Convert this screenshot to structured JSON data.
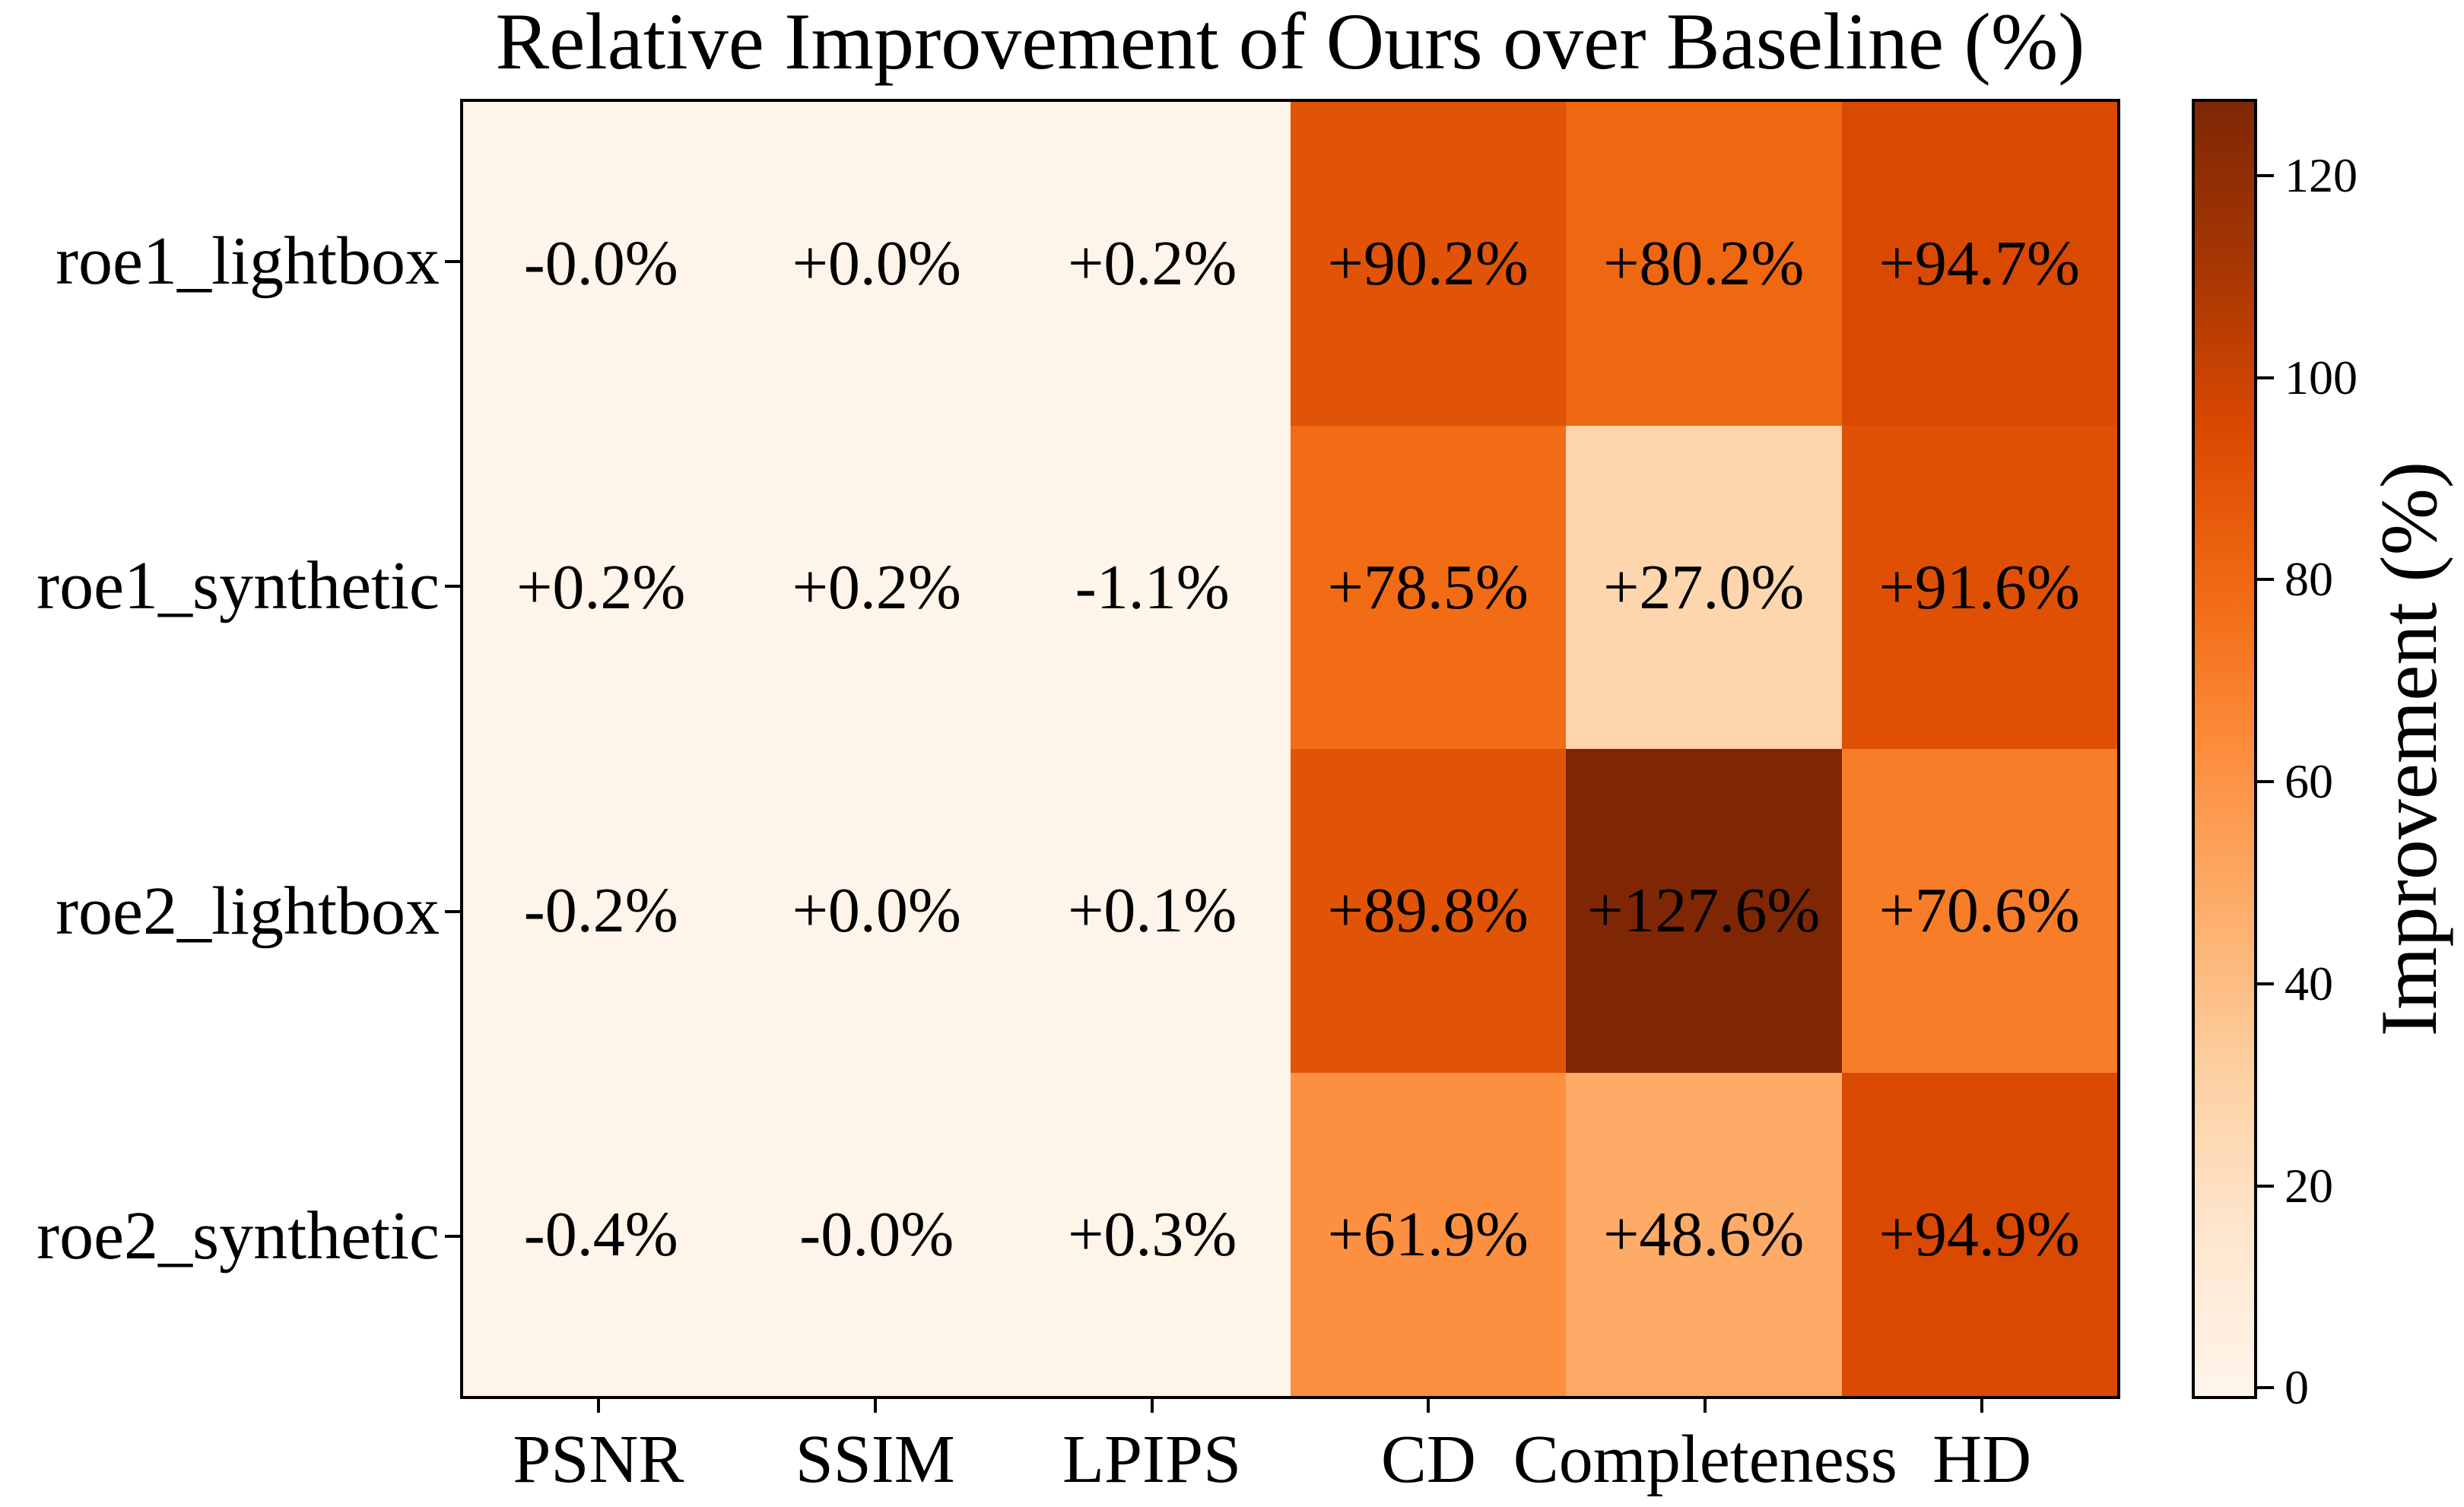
{
  "chart_data": {
    "type": "heatmap",
    "title": "Relative Improvement of Ours over Baseline (%)",
    "rows": [
      "roe1_lightbox",
      "roe1_synthetic",
      "roe2_lightbox",
      "roe2_synthetic"
    ],
    "columns": [
      "PSNR",
      "SSIM",
      "LPIPS",
      "CD",
      "Completeness",
      "HD"
    ],
    "values": [
      [
        -0.0,
        0.0,
        0.2,
        90.2,
        80.2,
        94.7
      ],
      [
        0.2,
        0.2,
        -1.1,
        78.5,
        27.0,
        91.6
      ],
      [
        -0.2,
        0.0,
        0.1,
        89.8,
        127.6,
        70.6
      ],
      [
        -0.4,
        -0.0,
        0.3,
        61.9,
        48.6,
        94.9
      ]
    ],
    "cell_labels": [
      [
        "-0.0%",
        "+0.0%",
        "+0.2%",
        "+90.2%",
        "+80.2%",
        "+94.7%"
      ],
      [
        "+0.2%",
        "+0.2%",
        "-1.1%",
        "+78.5%",
        "+27.0%",
        "+91.6%"
      ],
      [
        "-0.2%",
        "+0.0%",
        "+0.1%",
        "+89.8%",
        "+127.6%",
        "+70.6%"
      ],
      [
        "-0.4%",
        "-0.0%",
        "+0.3%",
        "+61.9%",
        "+48.6%",
        "+94.9%"
      ]
    ],
    "value_range": {
      "vmin": -1.1,
      "vmax": 127.6
    },
    "colorbar": {
      "label": "Improvement (%)",
      "ticks": [
        0,
        20,
        40,
        60,
        80,
        100,
        120
      ]
    },
    "colormap": {
      "name": "Oranges",
      "stops": [
        "#fff5eb",
        "#fee6ce",
        "#fdd0a2",
        "#fdae6b",
        "#fd8d3c",
        "#f16913",
        "#d94801",
        "#a63603",
        "#7f2704"
      ]
    },
    "colors": {
      "cell_text": "#000000",
      "axis_and_border": "#000000",
      "background": "#ffffff"
    },
    "layout_hints": {
      "grid": "off",
      "annotations": "on",
      "colorbar_position": "right"
    }
  }
}
